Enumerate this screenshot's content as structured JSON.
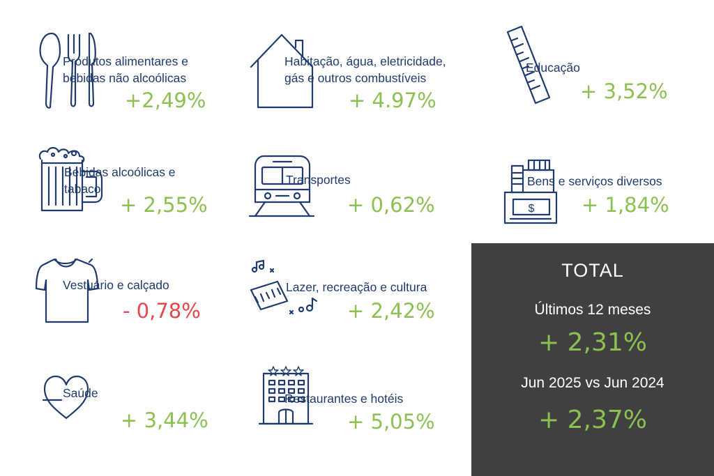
{
  "colors": {
    "label": "#1f3b6e",
    "positive": "#8cc152",
    "negative": "#e8474a",
    "panel": "#404040"
  },
  "categories": [
    {
      "icon": "cutlery-icon",
      "label": "Produtos alimentares e\nbebidas não alcoólicas",
      "value": "+2,49%",
      "sign": "positive"
    },
    {
      "icon": "house-icon",
      "label": "Habitação, água, eletricidade,\ngás e outros combustíveis",
      "value": "+ 4.97%",
      "sign": "positive"
    },
    {
      "icon": "ruler-icon",
      "label": "Educação",
      "value": "+ 3,52%",
      "sign": "positive"
    },
    {
      "icon": "beer-mug-icon",
      "label": "Bebidas alcoólicas e\ntabaco",
      "value": "+ 2,55%",
      "sign": "positive"
    },
    {
      "icon": "train-icon",
      "label": "Transportes",
      "value": "+ 0,62%",
      "sign": "positive"
    },
    {
      "icon": "cash-register-icon",
      "label": "Bens e serviços diversos",
      "value": "+ 1,84%",
      "sign": "positive"
    },
    {
      "icon": "tshirt-icon",
      "label": "Vestuário e calçado",
      "value": "- 0,78%",
      "sign": "negative"
    },
    {
      "icon": "piano-music-icon",
      "label": "Lazer, recreação e cultura",
      "value": "+ 2,42%",
      "sign": "positive"
    },
    {
      "icon": "heart-icon",
      "label": "Saúde",
      "value": "+ 3,44%",
      "sign": "positive"
    },
    {
      "icon": "hotel-icon",
      "label": "Restaurantes e hotéis",
      "value": "+ 5,05%",
      "sign": "positive"
    }
  ],
  "total": {
    "title": "TOTAL",
    "label_12m": "Últimos 12 meses",
    "value_12m": "+ 2,31%",
    "label_yoy": "Jun 2025 vs Jun 2024",
    "value_yoy": "+ 2,37%"
  }
}
